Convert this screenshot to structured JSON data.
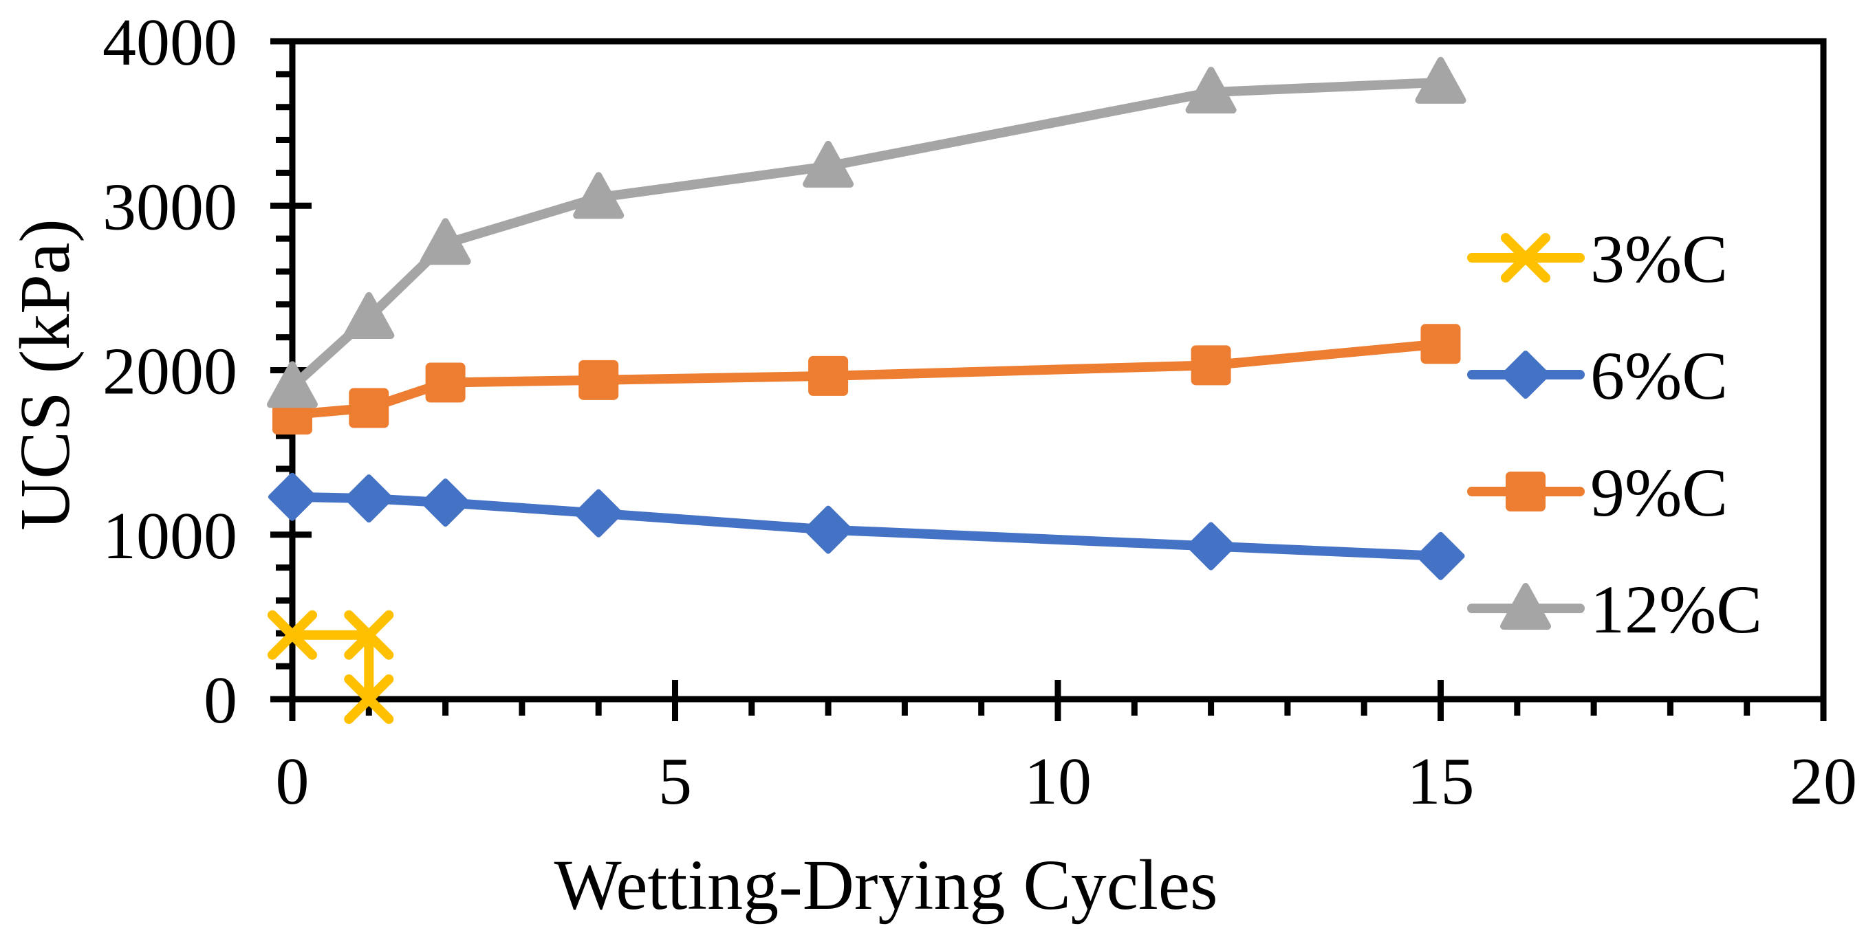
{
  "chart_data": {
    "type": "line",
    "title": "",
    "xlabel": "Wetting-Drying Cycles",
    "ylabel": "UCS (kPa)",
    "xlim": [
      0,
      20
    ],
    "ylim": [
      0,
      4000
    ],
    "x_major_ticks": [
      0,
      5,
      10,
      15,
      20
    ],
    "x_minor_step": 1,
    "y_major_ticks": [
      0,
      1000,
      2000,
      3000,
      4000
    ],
    "y_minor_step": 200,
    "grid": false,
    "plot_border": true,
    "legend_position": "middle-right-inside",
    "background_color": "#FFFFFF",
    "axis_color": "#000000",
    "series": [
      {
        "name": "3%C",
        "color": "#FFC000",
        "marker": "x",
        "x": [
          0,
          1,
          1
        ],
        "y": [
          390,
          390,
          0
        ]
      },
      {
        "name": "6%C",
        "color": "#4472C4",
        "marker": "diamond",
        "x": [
          0,
          1,
          2,
          4,
          7,
          12,
          15
        ],
        "y": [
          1230,
          1220,
          1195,
          1130,
          1030,
          930,
          870
        ]
      },
      {
        "name": "9%C",
        "color": "#ED7D31",
        "marker": "square",
        "x": [
          0,
          1,
          2,
          4,
          7,
          12,
          15
        ],
        "y": [
          1730,
          1770,
          1925,
          1940,
          1965,
          2030,
          2160
        ]
      },
      {
        "name": "12%C",
        "color": "#A5A5A5",
        "marker": "triangle",
        "x": [
          0,
          1,
          2,
          4,
          7,
          12,
          15
        ],
        "y": [
          1900,
          2320,
          2770,
          3050,
          3240,
          3690,
          3750
        ]
      }
    ]
  }
}
